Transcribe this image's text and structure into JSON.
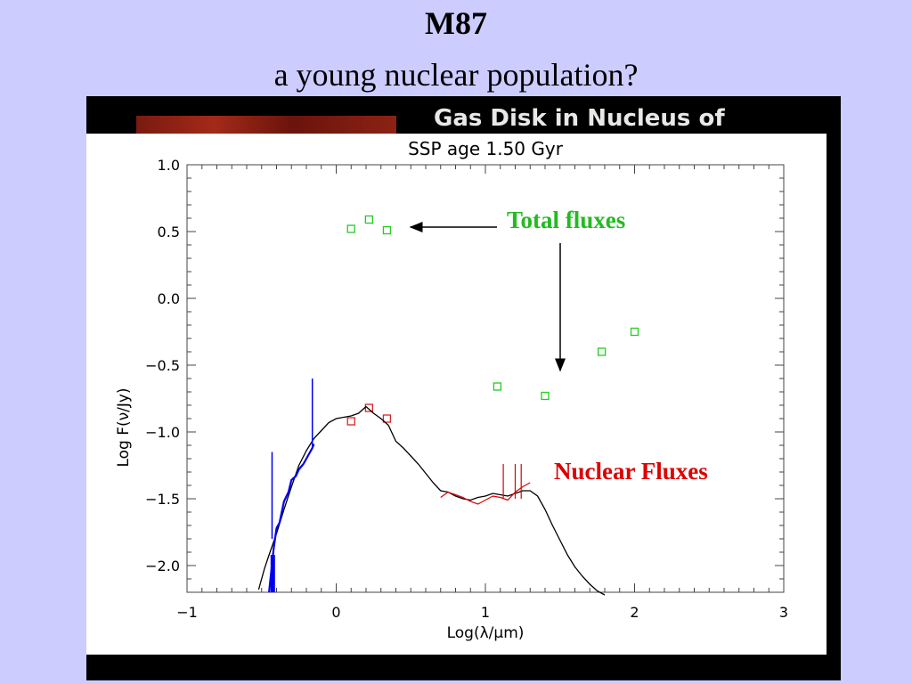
{
  "slide": {
    "title_line1": "M87",
    "title_line2": "a young nuclear population?",
    "background_caption": "Gas Disk in Nucleus of"
  },
  "annotations": {
    "total_fluxes": "Total fluxes",
    "nuclear_fluxes": "Nuclear Fluxes"
  },
  "colors": {
    "slide_bg": "#ccccff",
    "total": "#22cc22",
    "nuclear": "#dd2222",
    "model": "#000000",
    "uv_spectrum": "#0000ee",
    "ir_spectrum": "#dd0000"
  },
  "chart_data": {
    "type": "scatter",
    "title": "SSP age 1.50 Gyr",
    "xlabel": "Log(λ/µm)",
    "ylabel": "Log F(ν/Jy)",
    "xlim": [
      -1,
      3
    ],
    "ylim": [
      -2.2,
      1.0
    ],
    "xticks": [
      -1,
      0,
      1,
      2,
      3
    ],
    "yticks": [
      1.0,
      0.5,
      0.0,
      -0.5,
      -1.0,
      -1.5,
      -2.0
    ],
    "xtick_labels": [
      "−1",
      "0",
      "1",
      "2",
      "3"
    ],
    "ytick_labels": [
      "1.0",
      "0.5",
      "0.0",
      "−0.5",
      "−1.0",
      "−1.5",
      "−2.0"
    ],
    "series": [
      {
        "name": "Total fluxes",
        "kind": "markers",
        "x": [
          0.1,
          0.22,
          0.34,
          1.08,
          1.4,
          1.78,
          2.0
        ],
        "y": [
          0.52,
          0.59,
          0.51,
          -0.66,
          -0.73,
          -0.4,
          -0.25
        ]
      },
      {
        "name": "Nuclear Fluxes",
        "kind": "markers",
        "x": [
          0.1,
          0.22,
          0.34
        ],
        "y": [
          -0.92,
          -0.82,
          -0.9
        ]
      },
      {
        "kind": "model-line",
        "x": [
          -0.52,
          -0.48,
          -0.45,
          -0.4,
          -0.35,
          -0.3,
          -0.25,
          -0.2,
          -0.15,
          -0.1,
          -0.05,
          0.0,
          0.05,
          0.1,
          0.15,
          0.2,
          0.25,
          0.3,
          0.35,
          0.4,
          0.45,
          0.5,
          0.55,
          0.6,
          0.65,
          0.7,
          0.75,
          0.8,
          0.85,
          0.9,
          0.95,
          1.0,
          1.05,
          1.1,
          1.15,
          1.2,
          1.25,
          1.3,
          1.35,
          1.4,
          1.45,
          1.5,
          1.55,
          1.6,
          1.65,
          1.7,
          1.75,
          1.8
        ],
        "y": [
          -2.18,
          -2.02,
          -1.92,
          -1.76,
          -1.58,
          -1.41,
          -1.25,
          -1.14,
          -1.05,
          -0.99,
          -0.93,
          -0.9,
          -0.89,
          -0.88,
          -0.86,
          -0.81,
          -0.86,
          -0.9,
          -0.95,
          -1.07,
          -1.12,
          -1.18,
          -1.24,
          -1.31,
          -1.38,
          -1.44,
          -1.45,
          -1.48,
          -1.5,
          -1.51,
          -1.49,
          -1.48,
          -1.46,
          -1.47,
          -1.48,
          -1.46,
          -1.44,
          -1.44,
          -1.48,
          -1.58,
          -1.7,
          -1.81,
          -1.92,
          -2.01,
          -2.08,
          -2.14,
          -2.19,
          -2.22
        ]
      },
      {
        "kind": "uv-spectrum",
        "x": [
          -0.45,
          -0.42,
          -0.4,
          -0.38,
          -0.35,
          -0.32,
          -0.3,
          -0.27,
          -0.25,
          -0.22,
          -0.2,
          -0.18,
          -0.16,
          -0.15
        ],
        "y": [
          -2.2,
          -1.88,
          -1.72,
          -1.68,
          -1.52,
          -1.45,
          -1.36,
          -1.33,
          -1.28,
          -1.24,
          -1.2,
          -1.16,
          -1.12,
          -1.09
        ]
      },
      {
        "kind": "ir-spectrum",
        "x": [
          0.7,
          0.75,
          0.8,
          0.85,
          0.9,
          0.95,
          1.0,
          1.05,
          1.1,
          1.15,
          1.2,
          1.25,
          1.3
        ],
        "y": [
          -1.49,
          -1.45,
          -1.47,
          -1.49,
          -1.52,
          -1.54,
          -1.51,
          -1.48,
          -1.49,
          -1.51,
          -1.45,
          -1.41,
          -1.38
        ]
      }
    ]
  }
}
